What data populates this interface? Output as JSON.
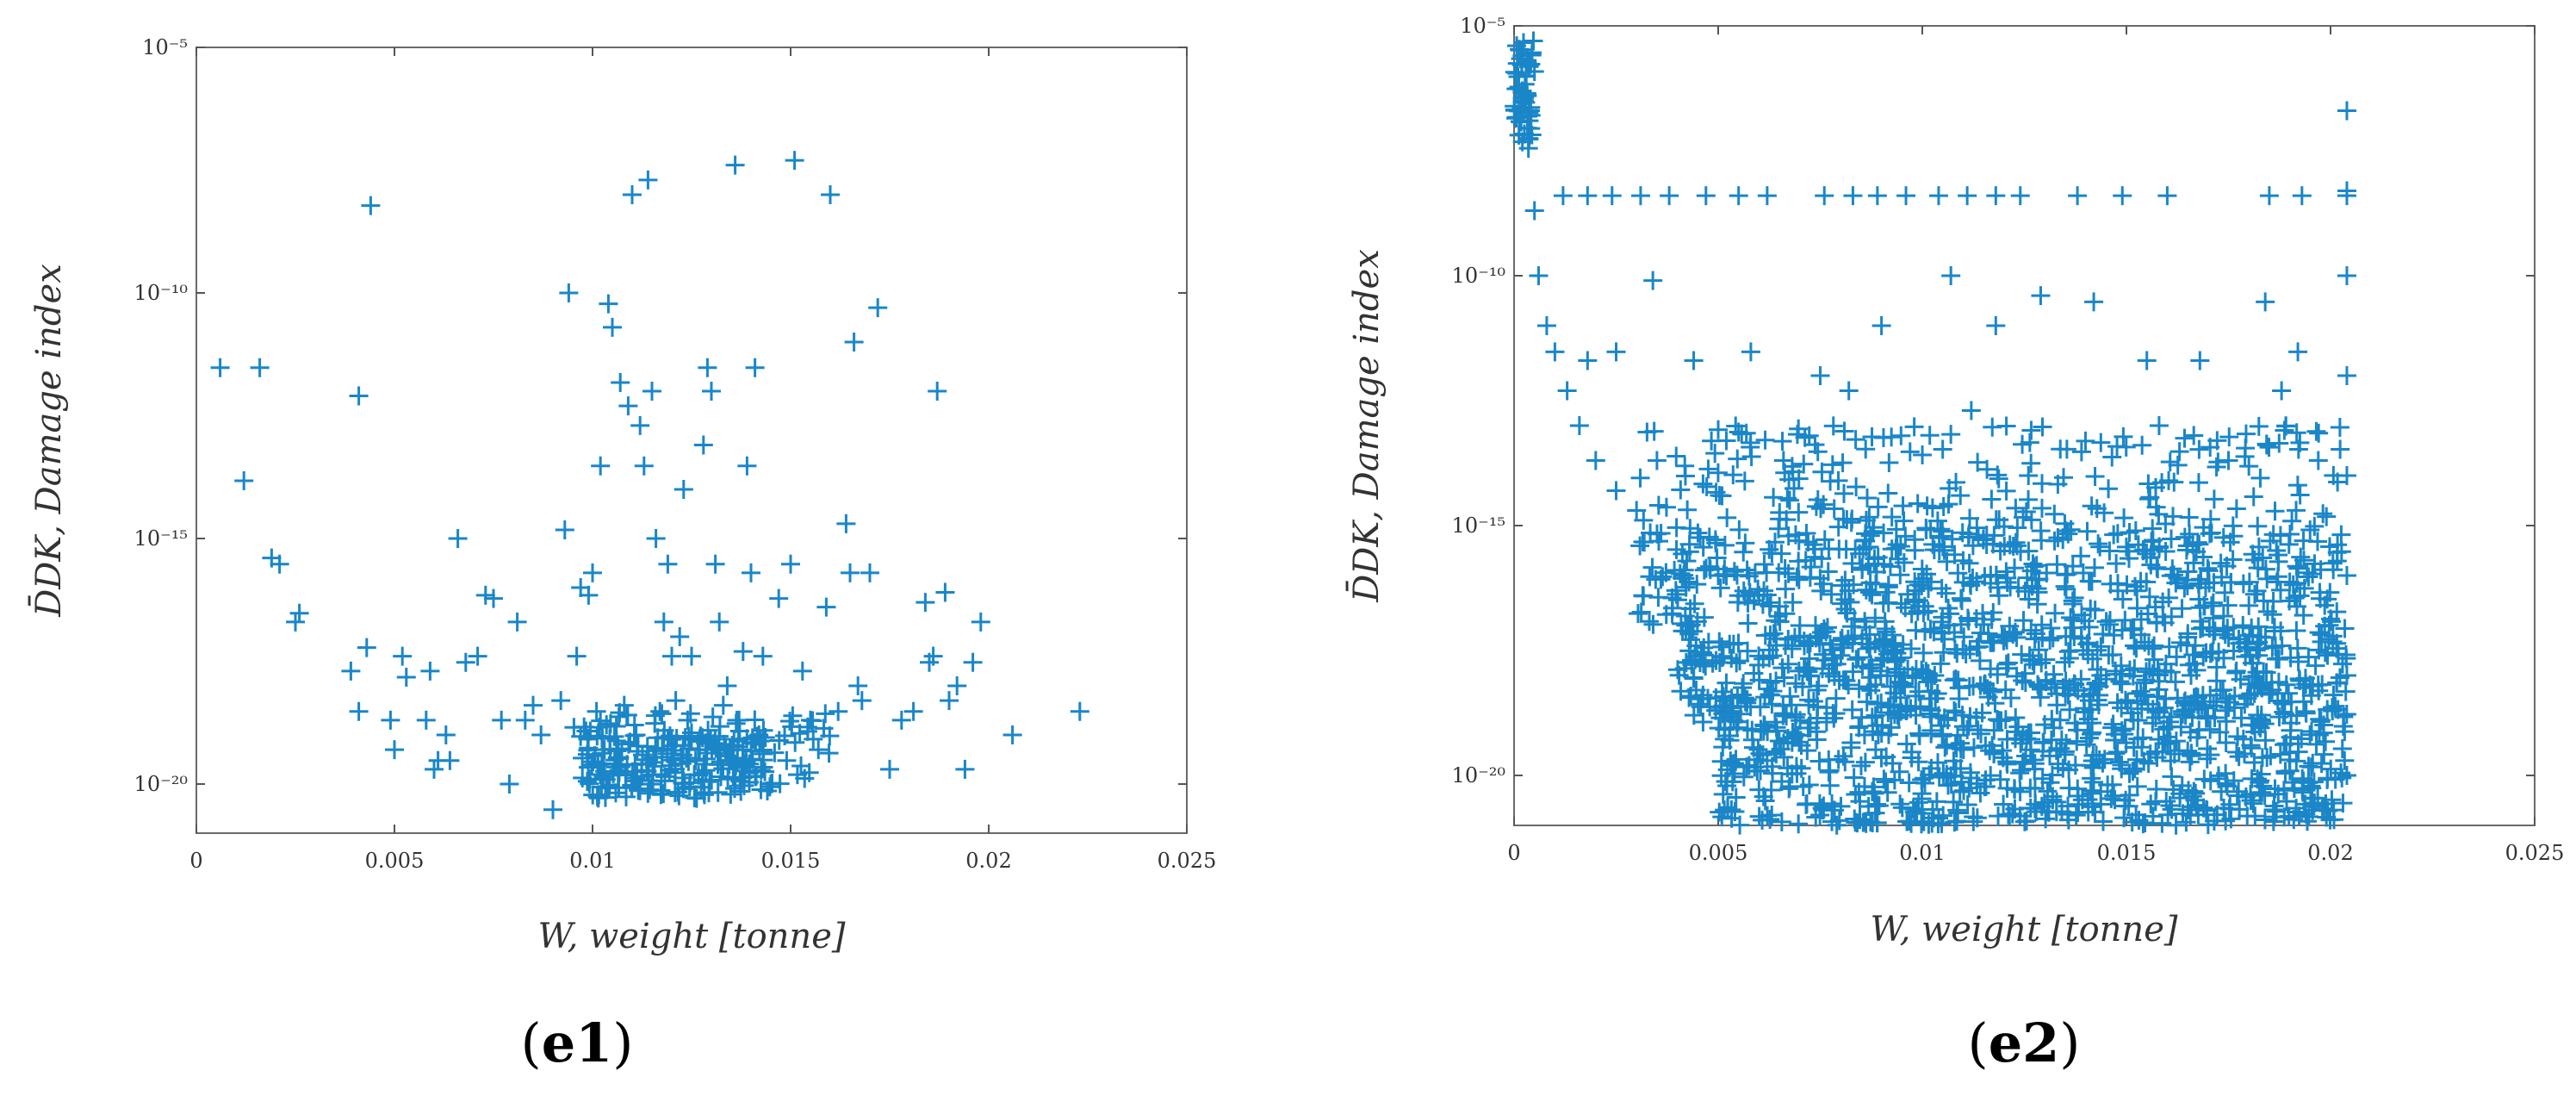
{
  "figure": {
    "marker_color": "#1a86c8",
    "marker_glyph": "plus"
  },
  "chart_data": [
    {
      "type": "scatter",
      "panel_label": "e1",
      "title": "",
      "xlabel": "W, weight [tonne]",
      "ylabel": "D̄DK, Damage index",
      "y_scale": "log",
      "xlim": [
        0,
        0.025
      ],
      "ylim": [
        1e-21,
        1e-05
      ],
      "x_ticks": [
        0,
        0.005,
        0.01,
        0.015,
        0.02,
        0.025
      ],
      "x_tick_labels": [
        "0",
        "0.005",
        "0.01",
        "0.015",
        "0.02",
        "0.025"
      ],
      "y_ticks": [
        1e-20,
        1e-15,
        1e-10,
        1e-05
      ],
      "y_tick_labels": [
        "10⁻²⁰",
        "10⁻¹⁵",
        "10⁻¹⁰",
        "10⁻⁵"
      ],
      "grid": false,
      "legend": "none",
      "series": [
        {
          "points": [
            [
              0.0006,
              3e-12
            ],
            [
              0.0016,
              3e-12
            ],
            [
              0.0012,
              1.5e-14
            ],
            [
              0.0019,
              4e-16
            ],
            [
              0.0021,
              3e-16
            ],
            [
              0.0025,
              2e-17
            ],
            [
              0.0026,
              3e-17
            ],
            [
              0.0039,
              2e-18
            ],
            [
              0.0041,
              8e-13
            ],
            [
              0.0044,
              6e-09
            ],
            [
              0.0041,
              3e-19
            ],
            [
              0.0043,
              6e-18
            ],
            [
              0.0049,
              2e-19
            ],
            [
              0.005,
              5e-20
            ],
            [
              0.0052,
              4e-18
            ],
            [
              0.0053,
              1.5e-18
            ],
            [
              0.0058,
              2e-19
            ],
            [
              0.0059,
              2e-18
            ],
            [
              0.006,
              2e-20
            ],
            [
              0.0061,
              3e-20
            ],
            [
              0.0063,
              1e-19
            ],
            [
              0.0064,
              3e-20
            ],
            [
              0.0066,
              1e-15
            ],
            [
              0.0068,
              3e-18
            ],
            [
              0.0071,
              4e-18
            ],
            [
              0.0073,
              7e-17
            ],
            [
              0.0075,
              6e-17
            ],
            [
              0.0077,
              2e-19
            ],
            [
              0.0079,
              1e-20
            ],
            [
              0.0081,
              2e-17
            ],
            [
              0.0083,
              2e-19
            ],
            [
              0.0085,
              4e-19
            ],
            [
              0.0087,
              1e-19
            ],
            [
              0.009,
              3e-21
            ],
            [
              0.0092,
              5e-19
            ],
            [
              0.0093,
              1.5e-15
            ],
            [
              0.0094,
              1e-10
            ],
            [
              0.0096,
              4e-18
            ],
            [
              0.0097,
              1e-16
            ],
            [
              0.0099,
              7e-17
            ],
            [
              0.01,
              2e-16
            ],
            [
              0.0101,
              3e-19
            ],
            [
              0.0102,
              3e-14
            ],
            [
              0.0103,
              5e-20
            ],
            [
              0.0104,
              6e-11
            ],
            [
              0.0105,
              2e-11
            ],
            [
              0.0106,
              1.5e-19
            ],
            [
              0.0107,
              1.5e-12
            ],
            [
              0.0108,
              4e-19
            ],
            [
              0.0109,
              5e-13
            ],
            [
              0.011,
              1e-08
            ],
            [
              0.0111,
              1e-19
            ],
            [
              0.0112,
              2e-13
            ],
            [
              0.0113,
              3e-14
            ],
            [
              0.0114,
              2e-08
            ],
            [
              0.0115,
              1e-12
            ],
            [
              0.0116,
              1e-15
            ],
            [
              0.0117,
              3e-19
            ],
            [
              0.0118,
              2e-17
            ],
            [
              0.0119,
              3e-16
            ],
            [
              0.012,
              4e-18
            ],
            [
              0.0121,
              5e-19
            ],
            [
              0.0122,
              1e-17
            ],
            [
              0.0123,
              1e-14
            ],
            [
              0.0124,
              2e-19
            ],
            [
              0.0125,
              4e-18
            ],
            [
              0.0126,
              3e-20
            ],
            [
              0.0127,
              5e-20
            ],
            [
              0.0128,
              8e-14
            ],
            [
              0.0129,
              3e-12
            ],
            [
              0.013,
              1e-12
            ],
            [
              0.0131,
              3e-16
            ],
            [
              0.0132,
              2e-17
            ],
            [
              0.0133,
              4e-19
            ],
            [
              0.0134,
              1e-18
            ],
            [
              0.0135,
              3e-20
            ],
            [
              0.0136,
              4e-08
            ],
            [
              0.0137,
              2e-19
            ],
            [
              0.0138,
              5e-18
            ],
            [
              0.0139,
              3e-14
            ],
            [
              0.014,
              2e-16
            ],
            [
              0.0141,
              3e-12
            ],
            [
              0.0142,
              1e-19
            ],
            [
              0.0143,
              4e-18
            ],
            [
              0.0145,
              1e-20
            ],
            [
              0.0147,
              6e-17
            ],
            [
              0.0149,
              3e-20
            ],
            [
              0.015,
              3e-16
            ],
            [
              0.0151,
              5e-08
            ],
            [
              0.0153,
              2e-18
            ],
            [
              0.0155,
              2e-19
            ],
            [
              0.0157,
              5e-20
            ],
            [
              0.0159,
              4e-17
            ],
            [
              0.016,
              1e-08
            ],
            [
              0.0162,
              3e-19
            ],
            [
              0.0164,
              2e-15
            ],
            [
              0.0165,
              2e-16
            ],
            [
              0.0166,
              1e-11
            ],
            [
              0.0167,
              1e-18
            ],
            [
              0.0168,
              5e-19
            ],
            [
              0.017,
              2e-16
            ],
            [
              0.0172,
              5e-11
            ],
            [
              0.0175,
              2e-20
            ],
            [
              0.0178,
              2e-19
            ],
            [
              0.0181,
              3e-19
            ],
            [
              0.0184,
              5e-17
            ],
            [
              0.0185,
              3e-18
            ],
            [
              0.0186,
              4e-18
            ],
            [
              0.0187,
              1e-12
            ],
            [
              0.0189,
              8e-17
            ],
            [
              0.019,
              5e-19
            ],
            [
              0.0192,
              1e-18
            ],
            [
              0.0194,
              2e-20
            ],
            [
              0.0196,
              3e-18
            ],
            [
              0.0198,
              2e-17
            ],
            [
              0.0206,
              1e-19
            ],
            [
              0.0223,
              3e-19
            ]
          ],
          "dense_clusters": [
            {
              "x_range": [
                0.0098,
                0.0145
              ],
              "y_range": [
                5e-21,
                1e-19
              ],
              "count": 180
            },
            {
              "x_range": [
                0.0095,
                0.016
              ],
              "y_range": [
                1e-20,
                3e-19
              ],
              "count": 100
            }
          ]
        }
      ]
    },
    {
      "type": "scatter",
      "panel_label": "e2",
      "title": "",
      "xlabel": "W, weight [tonne]",
      "ylabel": "D̄DK, Damage index",
      "y_scale": "log",
      "xlim": [
        0,
        0.025
      ],
      "ylim": [
        1e-21,
        1e-05
      ],
      "x_ticks": [
        0,
        0.005,
        0.01,
        0.015,
        0.02,
        0.025
      ],
      "x_tick_labels": [
        "0",
        "0.005",
        "0.01",
        "0.015",
        "0.02",
        "0.025"
      ],
      "y_ticks": [
        1e-20,
        1e-15,
        1e-10,
        1e-05
      ],
      "y_tick_labels": [
        "10⁻²⁰",
        "10⁻¹⁵",
        "10⁻¹⁰",
        "10⁻⁵"
      ],
      "grid": false,
      "legend": "none",
      "series": [
        {
          "points": [
            [
              0.0002,
              3e-07
            ],
            [
              0.0002,
              5e-07
            ],
            [
              0.0003,
              1e-06
            ],
            [
              0.0004,
              2e-07
            ],
            [
              0.0005,
              2e-09
            ],
            [
              0.0006,
              1e-10
            ],
            [
              0.0008,
              1e-11
            ],
            [
              0.001,
              3e-12
            ],
            [
              0.0013,
              5e-13
            ],
            [
              0.0016,
              1e-13
            ],
            [
              0.002,
              2e-14
            ],
            [
              0.0025,
              5e-15
            ],
            [
              0.003,
              2e-15
            ],
            [
              0.0036,
              7e-16
            ],
            [
              0.0043,
              3e-16
            ],
            [
              0.005,
              1e-16
            ],
            [
              0.006,
              4e-17
            ],
            [
              0.007,
              1e-17
            ],
            [
              0.008,
              5e-18
            ],
            [
              0.009,
              2e-18
            ],
            [
              0.0012,
              4e-09
            ],
            [
              0.0018,
              4e-09
            ],
            [
              0.0024,
              4e-09
            ],
            [
              0.0031,
              4e-09
            ],
            [
              0.0038,
              4e-09
            ],
            [
              0.0047,
              4e-09
            ],
            [
              0.0055,
              4e-09
            ],
            [
              0.0062,
              4e-09
            ],
            [
              0.0076,
              4e-09
            ],
            [
              0.0083,
              4e-09
            ],
            [
              0.0089,
              4e-09
            ],
            [
              0.0096,
              4e-09
            ],
            [
              0.0104,
              4e-09
            ],
            [
              0.0111,
              4e-09
            ],
            [
              0.0118,
              4e-09
            ],
            [
              0.0124,
              4e-09
            ],
            [
              0.0138,
              4e-09
            ],
            [
              0.0149,
              4e-09
            ],
            [
              0.016,
              4e-09
            ],
            [
              0.0185,
              4e-09
            ],
            [
              0.0193,
              4e-09
            ],
            [
              0.0204,
              4e-09
            ],
            [
              0.0204,
              2e-07
            ],
            [
              0.0204,
              5e-09
            ],
            [
              0.0204,
              1e-10
            ],
            [
              0.0204,
              1e-12
            ],
            [
              0.0204,
              1e-14
            ],
            [
              0.0204,
              1e-16
            ],
            [
              0.0204,
              1e-18
            ],
            [
              0.0204,
              1e-20
            ],
            [
              0.0018,
              2e-12
            ],
            [
              0.0025,
              3e-12
            ],
            [
              0.0034,
              8e-11
            ],
            [
              0.0044,
              2e-12
            ],
            [
              0.0058,
              3e-12
            ],
            [
              0.0075,
              1e-12
            ],
            [
              0.009,
              1e-11
            ],
            [
              0.0107,
              1e-10
            ],
            [
              0.0118,
              1e-11
            ],
            [
              0.0129,
              4e-11
            ],
            [
              0.0142,
              3e-11
            ],
            [
              0.0155,
              2e-12
            ],
            [
              0.0168,
              2e-12
            ],
            [
              0.0184,
              3e-11
            ],
            [
              0.0192,
              3e-12
            ],
            [
              0.0035,
              2e-14
            ],
            [
              0.0052,
              5e-14
            ],
            [
              0.0066,
              2e-14
            ],
            [
              0.0082,
              5e-13
            ],
            [
              0.0097,
              3e-14
            ],
            [
              0.0112,
              2e-13
            ],
            [
              0.0126,
              1e-14
            ],
            [
              0.0139,
              3e-14
            ],
            [
              0.0158,
              1e-13
            ],
            [
              0.0175,
              2e-14
            ],
            [
              0.0188,
              5e-13
            ],
            [
              0.0197,
              2e-14
            ]
          ],
          "dense_clusters": [
            {
              "x_range": [
                0.005,
                0.0204
              ],
              "y_range": [
                1e-21,
                1e-19
              ],
              "count": 600
            },
            {
              "x_range": [
                0.004,
                0.0204
              ],
              "y_range": [
                1e-19,
                1e-17
              ],
              "count": 700
            },
            {
              "x_range": [
                0.003,
                0.0204
              ],
              "y_range": [
                1e-17,
                1e-15
              ],
              "count": 500
            },
            {
              "x_range": [
                0.003,
                0.0204
              ],
              "y_range": [
                1e-15,
                1e-13
              ],
              "count": 200
            },
            {
              "x_range": [
                0.0,
                0.0005
              ],
              "y_range": [
                3e-08,
                5e-06
              ],
              "count": 60
            }
          ]
        }
      ]
    }
  ]
}
